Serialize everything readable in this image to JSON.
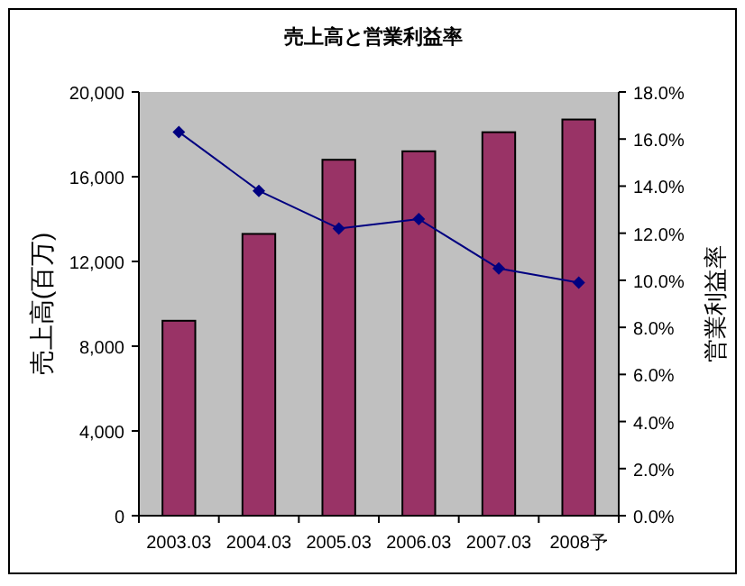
{
  "chart_data": {
    "type": "bar",
    "title": "売上高と営業利益率",
    "ylabel": "売上高(百万)",
    "y2label": "営業利益率",
    "categories": [
      "2003.03",
      "2004.03",
      "2005.03",
      "2006.03",
      "2007.03",
      "2008予"
    ],
    "series": [
      {
        "color": "#993366",
        "values": [
          9200,
          13300,
          16800,
          17200,
          18100,
          18700
        ]
      },
      {
        "type": "line",
        "axis": "y2",
        "color": "#000080",
        "marker": "diamond",
        "values": [
          16.3,
          13.8,
          12.2,
          12.6,
          10.5,
          9.9
        ]
      }
    ],
    "ylim": [
      0,
      20000
    ],
    "yticks": [
      0,
      {
        "value": 4000,
        "label": "4,000"
      },
      {
        "value": 8000,
        "label": "8,000"
      },
      {
        "value": 12000,
        "label": "12,000"
      },
      {
        "value": 16000,
        "label": "16,000"
      },
      {
        "value": 20000,
        "label": "20,000"
      }
    ],
    "y2lim": [
      0,
      18
    ],
    "y2ticks": [
      {
        "value": 0,
        "label": "0.0%"
      },
      {
        "value": 2,
        "label": "2.0%"
      },
      {
        "value": 4,
        "label": "4.0%"
      },
      {
        "value": 6,
        "label": "6.0%"
      },
      {
        "value": 8,
        "label": "8.0%"
      },
      {
        "value": 10,
        "label": "10.0%"
      },
      {
        "value": 12,
        "label": "12.0%"
      },
      {
        "value": 14,
        "label": "14.0%"
      },
      {
        "value": 16,
        "label": "16.0%"
      },
      {
        "value": 18,
        "label": "18.0%"
      }
    ],
    "grid": false
  }
}
